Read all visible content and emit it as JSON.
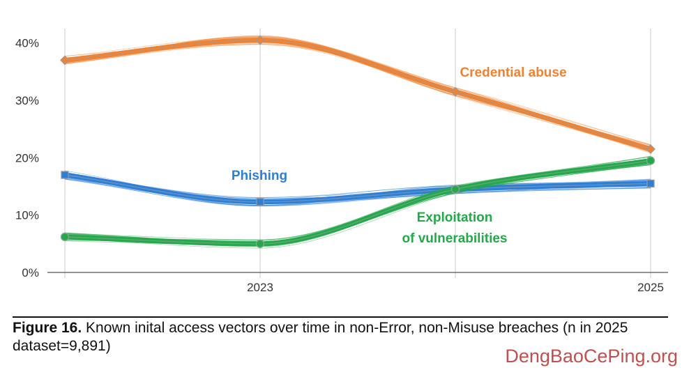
{
  "chart_data": {
    "type": "line",
    "x": [
      2022,
      2023,
      2024,
      2025
    ],
    "x_tick_labels": [
      {
        "x": 2023,
        "label": "2023"
      },
      {
        "x": 2025,
        "label": "2025"
      }
    ],
    "y_ticks": [
      0,
      10,
      20,
      30,
      40
    ],
    "y_tick_labels": [
      "0%",
      "10%",
      "20%",
      "30%",
      "40%"
    ],
    "ylim": [
      0,
      43
    ],
    "grid": "vertical",
    "series": [
      {
        "name": "Credential abuse",
        "color": "#f08232",
        "marker": "diamond",
        "values": [
          37,
          40.5,
          31.5,
          21.5
        ]
      },
      {
        "name": "Phishing",
        "color": "#2d7fd6",
        "marker": "square",
        "values": [
          17,
          12.3,
          14.5,
          15.5
        ]
      },
      {
        "name": "Exploitation of vulnerabilities",
        "label_lines": [
          "Exploitation",
          "of vulnerabilities"
        ],
        "color": "#23a84a",
        "marker": "circle",
        "values": [
          6.2,
          5,
          14.5,
          19.5
        ]
      }
    ]
  },
  "caption": {
    "figure_label": "Figure 16.",
    "text": " Known inital access vectors over time in non-Error, non-Misuse breaches (n in 2025 dataset=9,891)"
  },
  "watermark": "DengBaoCePing.org"
}
